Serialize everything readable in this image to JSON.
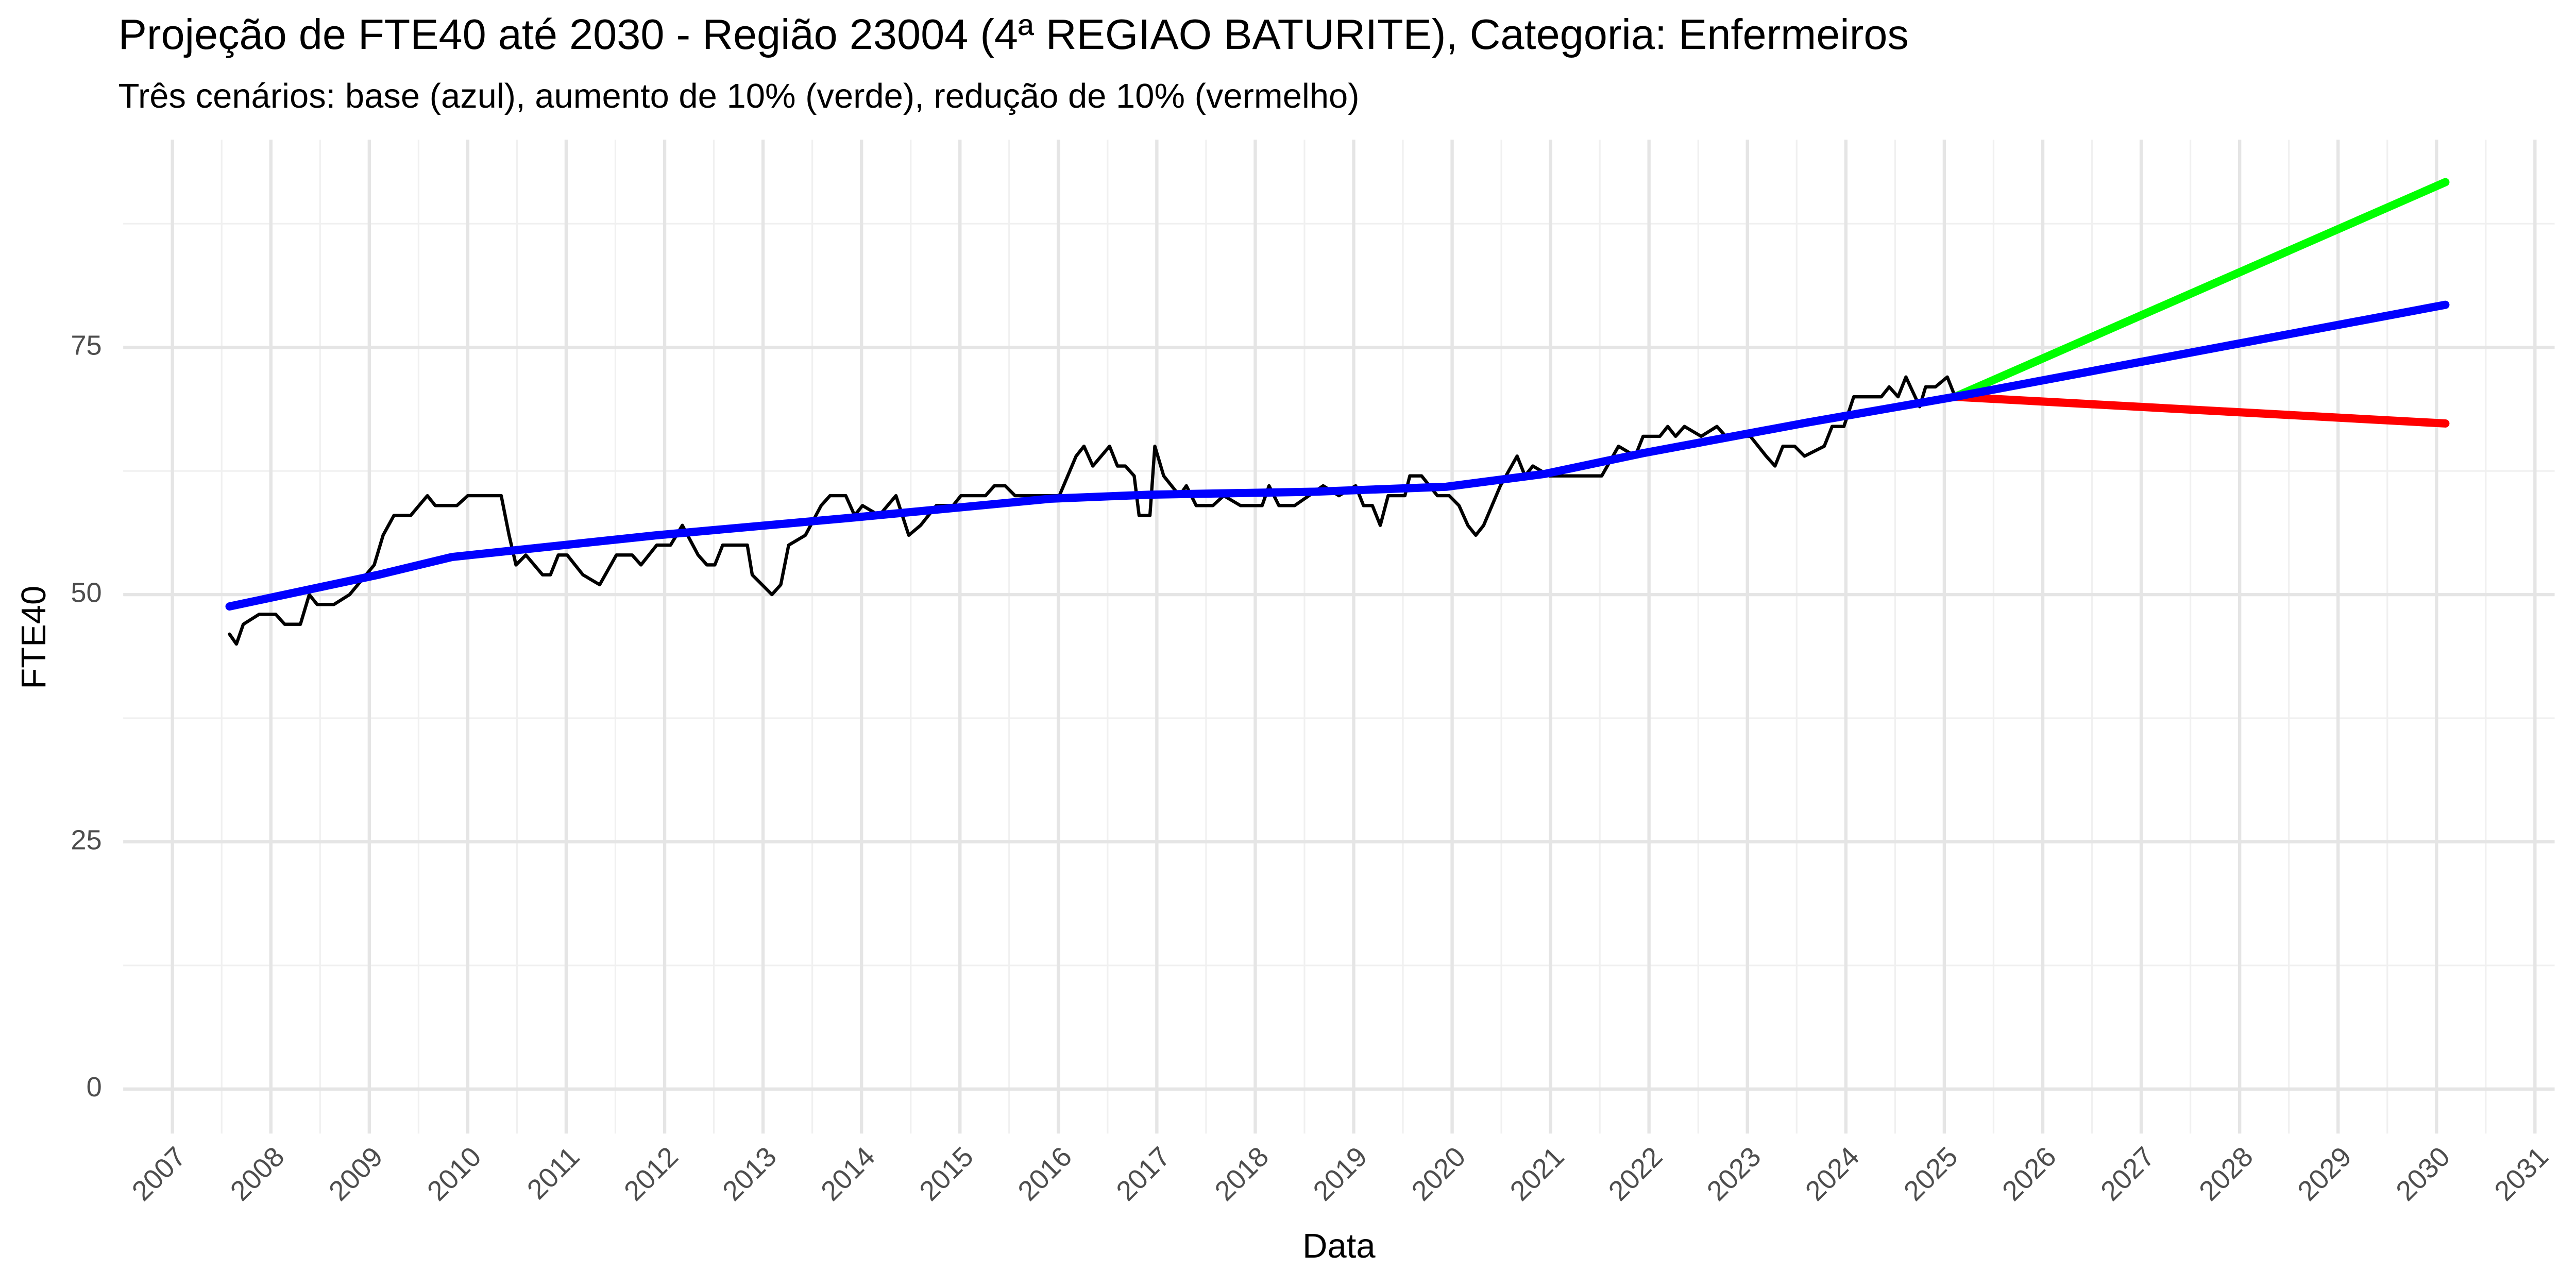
{
  "chart_data": {
    "type": "line",
    "title": "Projeção de FTE40 até 2030 - Região 23004 (4ª REGIAO BATURITE), Categoria: Enfermeiros",
    "subtitle": "Três cenários: base (azul), aumento de 10% (verde), redução de 10% (vermelho)",
    "x_label": "Data",
    "y_label": "FTE40",
    "xlim": [
      2006.5,
      2031.2
    ],
    "xticks": [
      2007,
      2008,
      2009,
      2010,
      2011,
      2012,
      2013,
      2014,
      2015,
      2016,
      2017,
      2018,
      2019,
      2020,
      2021,
      2022,
      2023,
      2024,
      2025,
      2026,
      2027,
      2028,
      2029,
      2030,
      2031
    ],
    "ylim": [
      -4.5,
      96
    ],
    "yticks": [
      0,
      25,
      50,
      75
    ],
    "grid": true,
    "minor_grid": true,
    "series": [
      {
        "color": "#000000",
        "width": 2,
        "x": [
          2007.58,
          2007.65,
          2007.72,
          2007.88,
          2008.05,
          2008.14,
          2008.3,
          2008.39,
          2008.47,
          2008.64,
          2008.8,
          2009.05,
          2009.14,
          2009.25,
          2009.42,
          2009.59,
          2009.67,
          2009.89,
          2010.0,
          2010.34,
          2010.42,
          2010.49,
          2010.59,
          2010.76,
          2010.84,
          2010.92,
          2011.01,
          2011.17,
          2011.34,
          2011.51,
          2011.67,
          2011.76,
          2011.92,
          2012.06,
          2012.18,
          2012.34,
          2012.43,
          2012.51,
          2012.59,
          2012.84,
          2012.89,
          2013.09,
          2013.18,
          2013.26,
          2013.43,
          2013.59,
          2013.68,
          2013.84,
          2013.93,
          2014.01,
          2014.18,
          2014.35,
          2014.48,
          2014.6,
          2014.76,
          2014.93,
          2015.01,
          2015.26,
          2015.35,
          2015.46,
          2015.56,
          2016.01,
          2016.18,
          2016.26,
          2016.35,
          2016.52,
          2016.6,
          2016.68,
          2016.77,
          2016.82,
          2016.93,
          2016.98,
          2017.07,
          2017.23,
          2017.3,
          2017.4,
          2017.57,
          2017.68,
          2017.85,
          2018.07,
          2018.14,
          2018.24,
          2018.4,
          2018.69,
          2018.85,
          2019.02,
          2019.1,
          2019.19,
          2019.27,
          2019.35,
          2019.52,
          2019.57,
          2019.69,
          2019.85,
          2019.97,
          2020.07,
          2020.16,
          2020.24,
          2020.32,
          2020.49,
          2020.66,
          2020.74,
          2020.82,
          2020.99,
          2021.52,
          2021.69,
          2021.86,
          2021.94,
          2022.11,
          2022.19,
          2022.27,
          2022.36,
          2022.53,
          2022.69,
          2022.78,
          2023.03,
          2023.19,
          2023.28,
          2023.36,
          2023.48,
          2023.58,
          2023.78,
          2023.86,
          2023.98,
          2024.08,
          2024.36,
          2024.44,
          2024.53,
          2024.61,
          2024.75,
          2024.81,
          2024.91,
          2025.03,
          2025.11
        ],
        "values": [
          46,
          45,
          47,
          48,
          48,
          47,
          47,
          50,
          49,
          49,
          50,
          53,
          56,
          58,
          58,
          60,
          59,
          59,
          60,
          60,
          56,
          53,
          54,
          52,
          52,
          54,
          54,
          52,
          51,
          54,
          54,
          53,
          55,
          55,
          57,
          54,
          53,
          53,
          55,
          55,
          52,
          50,
          51,
          55,
          56,
          59,
          60,
          60,
          58,
          59,
          58,
          60,
          56,
          57,
          59,
          59,
          60,
          60,
          61,
          61,
          60,
          60,
          64,
          65,
          63,
          65,
          63,
          63,
          62,
          58,
          58,
          65,
          62,
          60,
          61,
          59,
          59,
          60,
          59,
          59,
          61,
          59,
          59,
          61,
          60,
          61,
          59,
          59,
          57,
          60,
          60,
          62,
          62,
          60,
          60,
          59,
          57,
          56,
          57,
          61,
          64,
          62,
          63,
          62,
          62,
          65,
          64,
          66,
          66,
          67,
          66,
          67,
          66,
          67,
          66,
          66,
          64,
          63,
          65,
          65,
          64,
          65,
          67,
          67,
          70,
          70,
          71,
          70,
          72,
          69,
          71,
          71,
          72,
          70
        ]
      },
      {
        "color": "#00ff00",
        "width": 5,
        "x": [
          2025.11,
          2030.09
        ],
        "values": [
          70,
          91.7
        ]
      },
      {
        "color": "#ff0000",
        "width": 5,
        "x": [
          2025.11,
          2030.09
        ],
        "values": [
          70,
          67.3
        ]
      },
      {
        "color": "#0000ff",
        "width": 5,
        "x": [
          2007.58,
          2009.09,
          2009.84,
          2011.92,
          2013.93,
          2015.93,
          2016.93,
          2018.6,
          2019.94,
          2020.94,
          2021.94,
          2023.61,
          2025.11,
          2030.09
        ],
        "values": [
          48.8,
          52,
          53.8,
          56,
          57.8,
          59.7,
          60.1,
          60.4,
          60.9,
          62.2,
          64.3,
          67.4,
          70,
          79.3
        ]
      }
    ]
  }
}
